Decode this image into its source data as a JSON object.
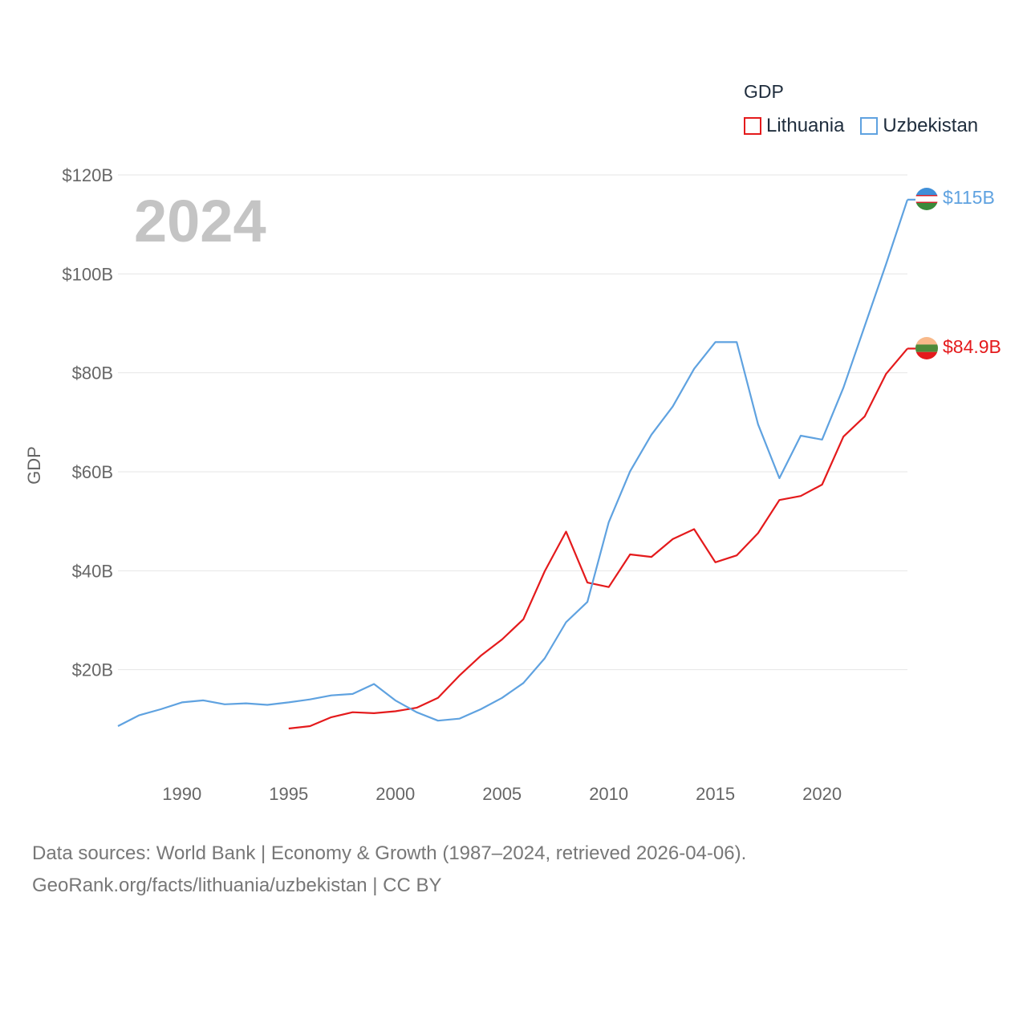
{
  "chart_data": {
    "type": "line",
    "year_label": "2024",
    "ylabel": "GDP",
    "ylim": [
      0,
      120
    ],
    "xlim": [
      1987,
      2024
    ],
    "y_ticks": [
      20,
      40,
      60,
      80,
      100,
      120
    ],
    "y_tick_labels": [
      "$20B",
      "$40B",
      "$60B",
      "$80B",
      "$100B",
      "$120B"
    ],
    "x_ticks": [
      1990,
      1995,
      2000,
      2005,
      2010,
      2015,
      2020
    ],
    "x_tick_labels": [
      "1990",
      "1995",
      "2000",
      "2005",
      "2010",
      "2015",
      "2020"
    ],
    "legend_title": "GDP",
    "series": [
      {
        "name": "Lithuania",
        "color": "#e41a1c",
        "end_label": "$84.9B",
        "x": [
          1995,
          1996,
          1997,
          1998,
          1999,
          2000,
          2001,
          2002,
          2003,
          2004,
          2005,
          2006,
          2007,
          2008,
          2009,
          2010,
          2011,
          2012,
          2013,
          2014,
          2015,
          2016,
          2017,
          2018,
          2019,
          2020,
          2021,
          2022,
          2023,
          2024
        ],
        "values": [
          8.1,
          8.6,
          10.4,
          11.4,
          11.2,
          11.6,
          12.3,
          14.3,
          18.8,
          22.8,
          26.1,
          30.2,
          39.9,
          47.9,
          37.6,
          36.7,
          43.3,
          42.8,
          46.4,
          48.4,
          41.7,
          43.1,
          47.6,
          54.3,
          55.1,
          57.4,
          67.1,
          71.2,
          79.8,
          84.9
        ]
      },
      {
        "name": "Uzbekistan",
        "color": "#5fa2e0",
        "end_label": "$115B",
        "x": [
          1987,
          1988,
          1989,
          1990,
          1991,
          1992,
          1993,
          1994,
          1995,
          1996,
          1997,
          1998,
          1999,
          2000,
          2001,
          2002,
          2003,
          2004,
          2005,
          2006,
          2007,
          2008,
          2009,
          2010,
          2011,
          2012,
          2013,
          2014,
          2015,
          2016,
          2017,
          2018,
          2019,
          2020,
          2021,
          2022,
          2023,
          2024
        ],
        "values": [
          8.6,
          10.8,
          12.0,
          13.4,
          13.8,
          13.0,
          13.2,
          12.9,
          13.4,
          14.0,
          14.8,
          15.1,
          17.1,
          13.8,
          11.4,
          9.7,
          10.1,
          12.0,
          14.3,
          17.3,
          22.3,
          29.6,
          33.7,
          49.8,
          60.1,
          67.5,
          73.2,
          80.8,
          86.2,
          86.2,
          69.6,
          58.7,
          67.3,
          66.5,
          77.0,
          89.5,
          102.0,
          115.0
        ]
      }
    ]
  },
  "footer": {
    "line1": "Data sources: World Bank | Economy & Growth (1987–2024, retrieved 2026-04-06).",
    "line2": "GeoRank.org/facts/lithuania/uzbekistan | CC BY"
  }
}
